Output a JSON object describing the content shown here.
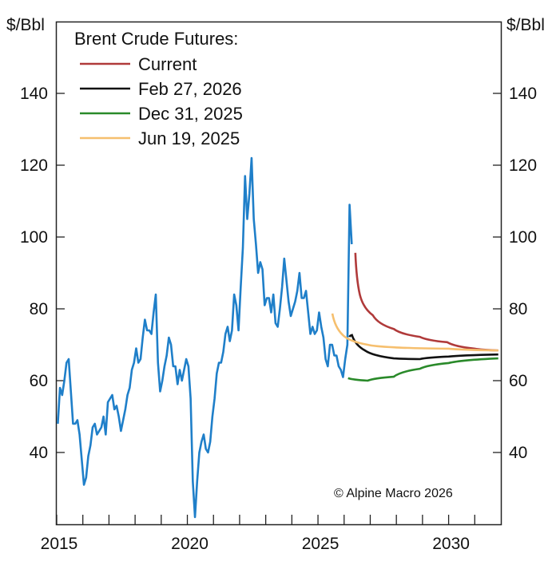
{
  "chart_data": {
    "type": "line",
    "title": "",
    "ylabel_left": "$/Bbl",
    "ylabel_right": "$/Bbl",
    "xlim": [
      2015,
      2032
    ],
    "ylim": [
      20,
      160
    ],
    "x_ticks": [
      2015,
      2020,
      2025,
      2030
    ],
    "y_ticks": [
      40,
      60,
      80,
      100,
      120,
      140
    ],
    "grid": false,
    "legend": {
      "title": "Brent Crude Futures:",
      "placement": "top-left",
      "entries": [
        "Current",
        "Feb 27, 2026",
        "Dec 31, 2025",
        "Jun 19, 2025"
      ]
    },
    "annotation": "© Alpine Macro 2026",
    "history": {
      "color": "#1f7fc9",
      "start_year": 2015,
      "monthly_values": [
        48,
        58,
        56,
        60,
        65,
        66,
        57,
        48,
        48,
        49,
        45,
        38,
        31,
        33,
        39,
        42,
        47,
        48,
        45,
        46,
        47,
        50,
        45,
        54,
        55,
        56,
        52,
        53,
        50,
        46,
        49,
        52,
        56,
        58,
        63,
        65,
        69,
        65,
        66,
        72,
        77,
        74,
        74,
        73,
        79,
        84,
        65,
        57,
        60,
        64,
        67,
        72,
        70,
        64,
        64,
        59,
        63,
        60,
        63,
        66,
        64,
        55,
        32,
        22,
        32,
        40,
        43,
        45,
        41,
        40,
        43,
        50,
        55,
        62,
        65,
        65,
        68,
        73,
        75,
        71,
        74,
        84,
        81,
        74,
        86,
        97,
        117,
        105,
        112,
        122,
        105,
        98,
        90,
        93,
        91,
        81,
        83,
        83,
        79,
        84,
        76,
        75,
        80,
        86,
        94,
        88,
        82,
        78,
        80,
        82,
        85,
        90,
        83,
        83,
        85,
        79,
        73,
        75,
        73,
        74,
        79,
        75,
        72,
        66,
        64,
        70,
        70,
        67,
        67,
        64,
        63,
        61,
        66,
        70,
        109,
        98
      ]
    },
    "series": [
      {
        "name": "Current",
        "color": "#b03a3a",
        "x": [
          2026.43,
          2026.6,
          2027.1,
          2027.9,
          2028.9,
          2029.95,
          2031.0,
          2031.9
        ],
        "y": [
          95.6,
          84.0,
          78.2,
          74.4,
          72.2,
          70.7,
          68.9,
          68.4
        ]
      },
      {
        "name": "Feb 27, 2026",
        "color": "#111111",
        "x": [
          2026.2,
          2026.3,
          2026.8,
          2027.9,
          2028.9,
          2030.0,
          2031.9
        ],
        "y": [
          72.2,
          72.7,
          68.4,
          66.2,
          66.0,
          66.7,
          67.3
        ]
      },
      {
        "name": "Dec 31, 2025",
        "color": "#2a8a2a",
        "x": [
          2026.15,
          2026.9,
          2027.9,
          2028.9,
          2030.0,
          2031.9
        ],
        "y": [
          60.7,
          60.0,
          61.1,
          63.3,
          64.9,
          66.2
        ]
      },
      {
        "name": "Jun 19, 2025",
        "color": "#f6bf6e",
        "x": [
          2025.55,
          2025.95,
          2026.9,
          2027.9,
          2030.0,
          2031.9
        ],
        "y": [
          78.7,
          72.7,
          70.0,
          69.3,
          68.9,
          68.4
        ]
      }
    ]
  }
}
